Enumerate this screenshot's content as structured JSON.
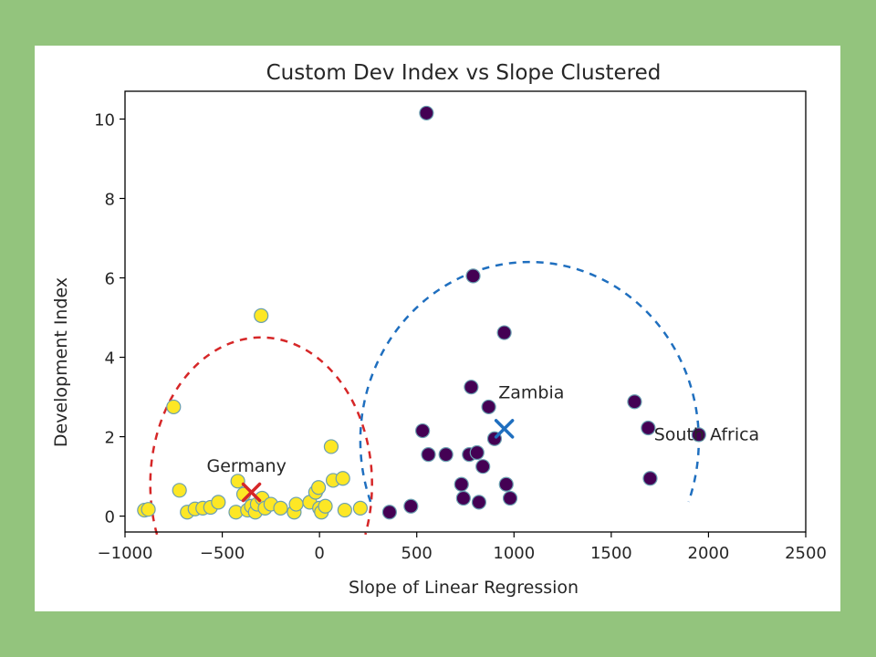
{
  "chart_data": {
    "type": "scatter",
    "title": "Custom Dev Index vs Slope Clustered",
    "xlabel": "Slope of Linear Regression",
    "ylabel": "Development Index",
    "xlim": [
      -1000,
      2500
    ],
    "ylim": [
      -0.4,
      10.7
    ],
    "xticks": [
      -1000,
      -500,
      0,
      500,
      1000,
      1500,
      2000,
      2500
    ],
    "xtick_labels": [
      "−1000",
      "−500",
      "0",
      "500",
      "1000",
      "1500",
      "2000",
      "2500"
    ],
    "yticks": [
      0,
      2,
      4,
      6,
      8,
      10
    ],
    "ytick_labels": [
      "0",
      "2",
      "4",
      "6",
      "8",
      "10"
    ],
    "grid": false,
    "series": [
      {
        "color": "#fde725",
        "points": [
          [
            -900,
            0.15
          ],
          [
            -880,
            0.17
          ],
          [
            -750,
            2.75
          ],
          [
            -720,
            0.65
          ],
          [
            -680,
            0.1
          ],
          [
            -640,
            0.18
          ],
          [
            -600,
            0.2
          ],
          [
            -560,
            0.22
          ],
          [
            -520,
            0.35
          ],
          [
            -430,
            0.1
          ],
          [
            -420,
            0.88
          ],
          [
            -390,
            0.55
          ],
          [
            -370,
            0.15
          ],
          [
            -350,
            0.25
          ],
          [
            -330,
            0.1
          ],
          [
            -320,
            0.3
          ],
          [
            -300,
            5.05
          ],
          [
            -295,
            0.45
          ],
          [
            -280,
            0.2
          ],
          [
            -250,
            0.3
          ],
          [
            -200,
            0.2
          ],
          [
            -130,
            0.1
          ],
          [
            -120,
            0.3
          ],
          [
            -50,
            0.35
          ],
          [
            -20,
            0.6
          ],
          [
            -5,
            0.72
          ],
          [
            0,
            0.2
          ],
          [
            10,
            0.1
          ],
          [
            30,
            0.25
          ],
          [
            60,
            1.75
          ],
          [
            70,
            0.9
          ],
          [
            120,
            0.95
          ],
          [
            130,
            0.15
          ],
          [
            210,
            0.2
          ]
        ]
      },
      {
        "color": "#440154",
        "points": [
          [
            360,
            0.1
          ],
          [
            470,
            0.25
          ],
          [
            530,
            2.15
          ],
          [
            550,
            10.15
          ],
          [
            560,
            1.55
          ],
          [
            650,
            1.55
          ],
          [
            730,
            0.8
          ],
          [
            740,
            0.45
          ],
          [
            770,
            1.55
          ],
          [
            780,
            3.25
          ],
          [
            790,
            6.05
          ],
          [
            810,
            1.6
          ],
          [
            820,
            0.35
          ],
          [
            840,
            1.25
          ],
          [
            870,
            2.75
          ],
          [
            900,
            1.95
          ],
          [
            950,
            4.62
          ],
          [
            960,
            0.8
          ],
          [
            980,
            0.45
          ],
          [
            1620,
            2.88
          ],
          [
            1690,
            2.22
          ],
          [
            1700,
            0.95
          ],
          [
            1950,
            2.05
          ]
        ]
      }
    ],
    "centroids": [
      {
        "x": -350,
        "y": 0.6,
        "color": "#d62728"
      },
      {
        "x": 950,
        "y": 2.2,
        "color": "#1f6fbf"
      }
    ],
    "annotations": [
      {
        "text": "Germany",
        "x": -580,
        "y": 1.25
      },
      {
        "text": "Zambia",
        "x": 920,
        "y": 3.1
      },
      {
        "text": "South Africa",
        "x": 1720,
        "y": 2.05
      }
    ],
    "overlays": [
      {
        "shape": "dashed-arc",
        "color": "#d62728",
        "center_x": -300,
        "center_y": 0.8,
        "rx": 570,
        "ry": 3.7
      },
      {
        "shape": "dashed-arc",
        "color": "#1f6fbf",
        "center_x": 1080,
        "center_y": 1.9,
        "rx": 870,
        "ry": 4.5
      }
    ]
  }
}
